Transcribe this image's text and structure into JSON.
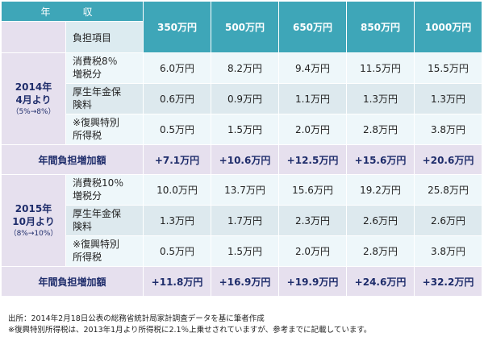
{
  "header": {
    "income_label": "年　収",
    "item_label": "負担項目",
    "incomes": [
      "350万円",
      "500万円",
      "650万円",
      "850万円",
      "1000万円"
    ]
  },
  "periods": [
    {
      "label_line1": "2014年",
      "label_line2": "4月より",
      "label_sub": "（5%→8%）",
      "rows": [
        {
          "item_line1": "消費税8％",
          "item_line2": "増税分",
          "values": [
            "6.0万円",
            "8.2万円",
            "9.4万円",
            "11.5万円",
            "15.5万円"
          ]
        },
        {
          "item_line1": "厚生年金保",
          "item_line2": "険料",
          "values": [
            "0.6万円",
            "0.9万円",
            "1.1万円",
            "1.3万円",
            "1.3万円"
          ]
        },
        {
          "item_line1": "※復興特別",
          "item_line2": "所得税",
          "values": [
            "0.5万円",
            "1.5万円",
            "2.0万円",
            "2.8万円",
            "3.8万円"
          ]
        }
      ],
      "total_label": "年間負担増加額",
      "totals": [
        "+7.1万円",
        "+10.6万円",
        "+12.5万円",
        "+15.6万円",
        "+20.6万円"
      ]
    },
    {
      "label_line1": "2015年",
      "label_line2": "10月より",
      "label_sub": "（8%→10%）",
      "rows": [
        {
          "item_line1": "消費税10％",
          "item_line2": "増税分",
          "values": [
            "10.0万円",
            "13.7万円",
            "15.6万円",
            "19.2万円",
            "25.8万円"
          ]
        },
        {
          "item_line1": "厚生年金保",
          "item_line2": "険料",
          "values": [
            "1.3万円",
            "1.7万円",
            "2.3万円",
            "2.6万円",
            "2.6万円"
          ]
        },
        {
          "item_line1": "※復興特別",
          "item_line2": "所得税",
          "values": [
            "0.5万円",
            "1.5万円",
            "2.0万円",
            "2.8万円",
            "3.8万円"
          ]
        }
      ],
      "total_label": "年間負担増加額",
      "totals": [
        "+11.8万円",
        "+16.9万円",
        "+19.9万円",
        "+24.6万円",
        "+32.2万円"
      ]
    }
  ],
  "notes": {
    "source": "出所：2014年2月18日公表の総務省統計局家計調査データを基に筆者作成",
    "remark": "※復興特別所得税は、2013年1月より所得税に2.1％上乗せされていますが、参考までに記載しています。"
  },
  "colors": {
    "header_teal": "#3ea6b8",
    "period_lavender": "#e6e0ee",
    "row_light": "#eef7fa",
    "row_dark": "#dde9ee",
    "period_text": "#1f2d6b"
  }
}
